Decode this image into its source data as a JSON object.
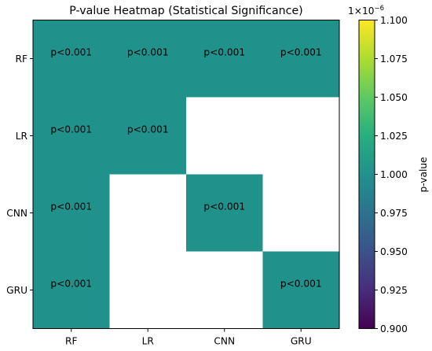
{
  "chart_data": {
    "type": "heatmap",
    "title": "P-value Heatmap (Statistical Significance)",
    "rows": [
      "RF",
      "LR",
      "CNN",
      "GRU"
    ],
    "columns": [
      "RF",
      "LR",
      "CNN",
      "GRU"
    ],
    "values": [
      [
        1e-06,
        1e-06,
        1e-06,
        1e-06
      ],
      [
        1e-06,
        1e-06,
        null,
        null
      ],
      [
        1e-06,
        null,
        1e-06,
        null
      ],
      [
        1e-06,
        null,
        null,
        1e-06
      ]
    ],
    "annotations": [
      [
        "p<0.001",
        "p<0.001",
        "p<0.001",
        "p<0.001"
      ],
      [
        "p<0.001",
        "p<0.001",
        "",
        ""
      ],
      [
        "p<0.001",
        "",
        "p<0.001",
        ""
      ],
      [
        "p<0.001",
        "",
        "",
        "p<0.001"
      ]
    ],
    "colormap": "viridis",
    "masked_color": "#ffffff",
    "colorbar": {
      "label": "p-value",
      "range": [
        0.9,
        1.1
      ],
      "ticks": [
        "0.900",
        "0.925",
        "0.950",
        "0.975",
        "1.000",
        "1.025",
        "1.050",
        "1.075",
        "1.100"
      ],
      "offset_base": "1×10",
      "offset_exp": "−6"
    },
    "grid": false
  }
}
